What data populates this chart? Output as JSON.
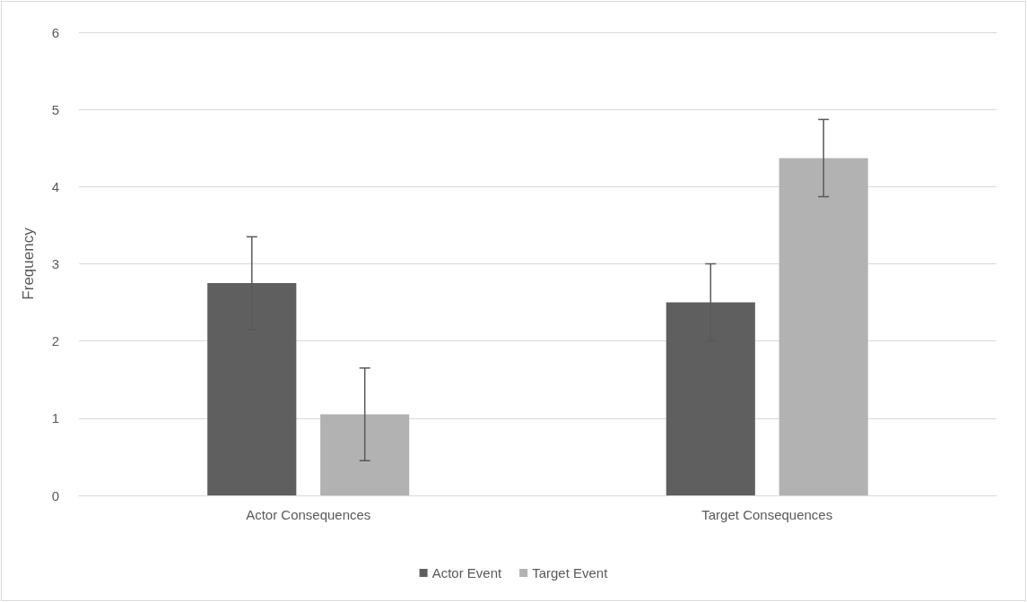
{
  "chart_data": {
    "type": "bar",
    "ylabel": "Frequency",
    "categories": [
      "Actor Consequences",
      "Target Consequences"
    ],
    "series": [
      {
        "name": "Actor Event",
        "color": "#5f5f5f",
        "values": [
          2.75,
          2.5
        ],
        "errors": [
          0.6,
          0.5
        ]
      },
      {
        "name": "Target Event",
        "color": "#b2b2b2",
        "values": [
          1.05,
          4.37
        ],
        "errors": [
          0.6,
          0.5
        ]
      }
    ],
    "ylim": [
      0,
      6
    ],
    "yticks": [
      0,
      1,
      2,
      3,
      4,
      5,
      6
    ],
    "grid": "y",
    "legend": "bottom"
  }
}
